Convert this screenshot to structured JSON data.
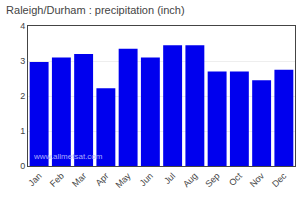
{
  "chart_data": {
    "type": "bar",
    "title": "Raleigh/Durham : precipitation (inch)",
    "categories": [
      "Jan",
      "Feb",
      "Mar",
      "Apr",
      "May",
      "Jun",
      "Jul",
      "Aug",
      "Sep",
      "Oct",
      "Nov",
      "Dec"
    ],
    "values": [
      2.97,
      3.1,
      3.2,
      2.22,
      3.35,
      3.1,
      3.45,
      3.45,
      2.7,
      2.7,
      2.45,
      2.75
    ],
    "color": "#0000EE",
    "ylim": [
      0,
      4
    ],
    "yticks": [
      0,
      1,
      2,
      3,
      4
    ],
    "grid": true,
    "annotations": [
      {
        "text": "www.allmetsat.com",
        "color": "#aaaaff"
      }
    ]
  }
}
